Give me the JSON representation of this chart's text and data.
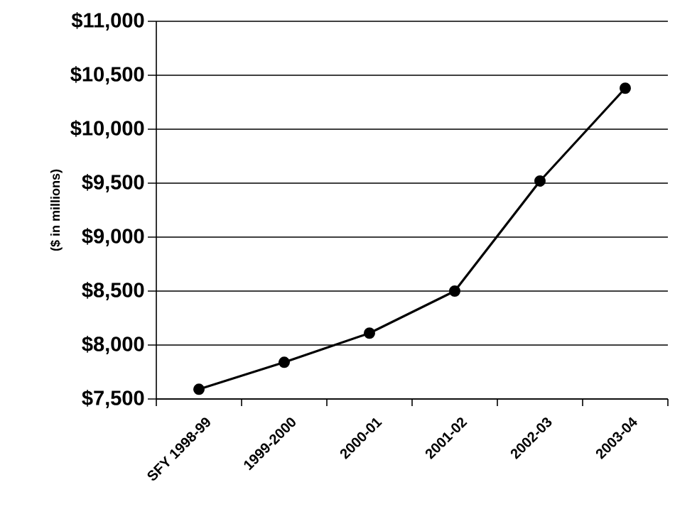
{
  "chart_data": {
    "type": "line",
    "ylabel": "($ in millions)",
    "categories": [
      "SFY 1998-99",
      "1999-2000",
      "2000-01",
      "2001-02",
      "2002-03",
      "2003-04"
    ],
    "series": [
      {
        "color": "#000000",
        "values": [
          7590,
          7840,
          8110,
          8500,
          9520,
          10380
        ]
      }
    ],
    "ylim": [
      7500,
      11000
    ],
    "yticks": [
      {
        "value": 7500,
        "label": "$7,500"
      },
      {
        "value": 8000,
        "label": "$8,000"
      },
      {
        "value": 8500,
        "label": "$8,500"
      },
      {
        "value": 9000,
        "label": "$9,000"
      },
      {
        "value": 9500,
        "label": "$9,500"
      },
      {
        "value": 10000,
        "label": "$10,000"
      },
      {
        "value": 10500,
        "label": "$10,500"
      },
      {
        "value": 11000,
        "label": "$11,000"
      }
    ],
    "grid": "y",
    "marker": "circle",
    "line_style": "solid"
  }
}
